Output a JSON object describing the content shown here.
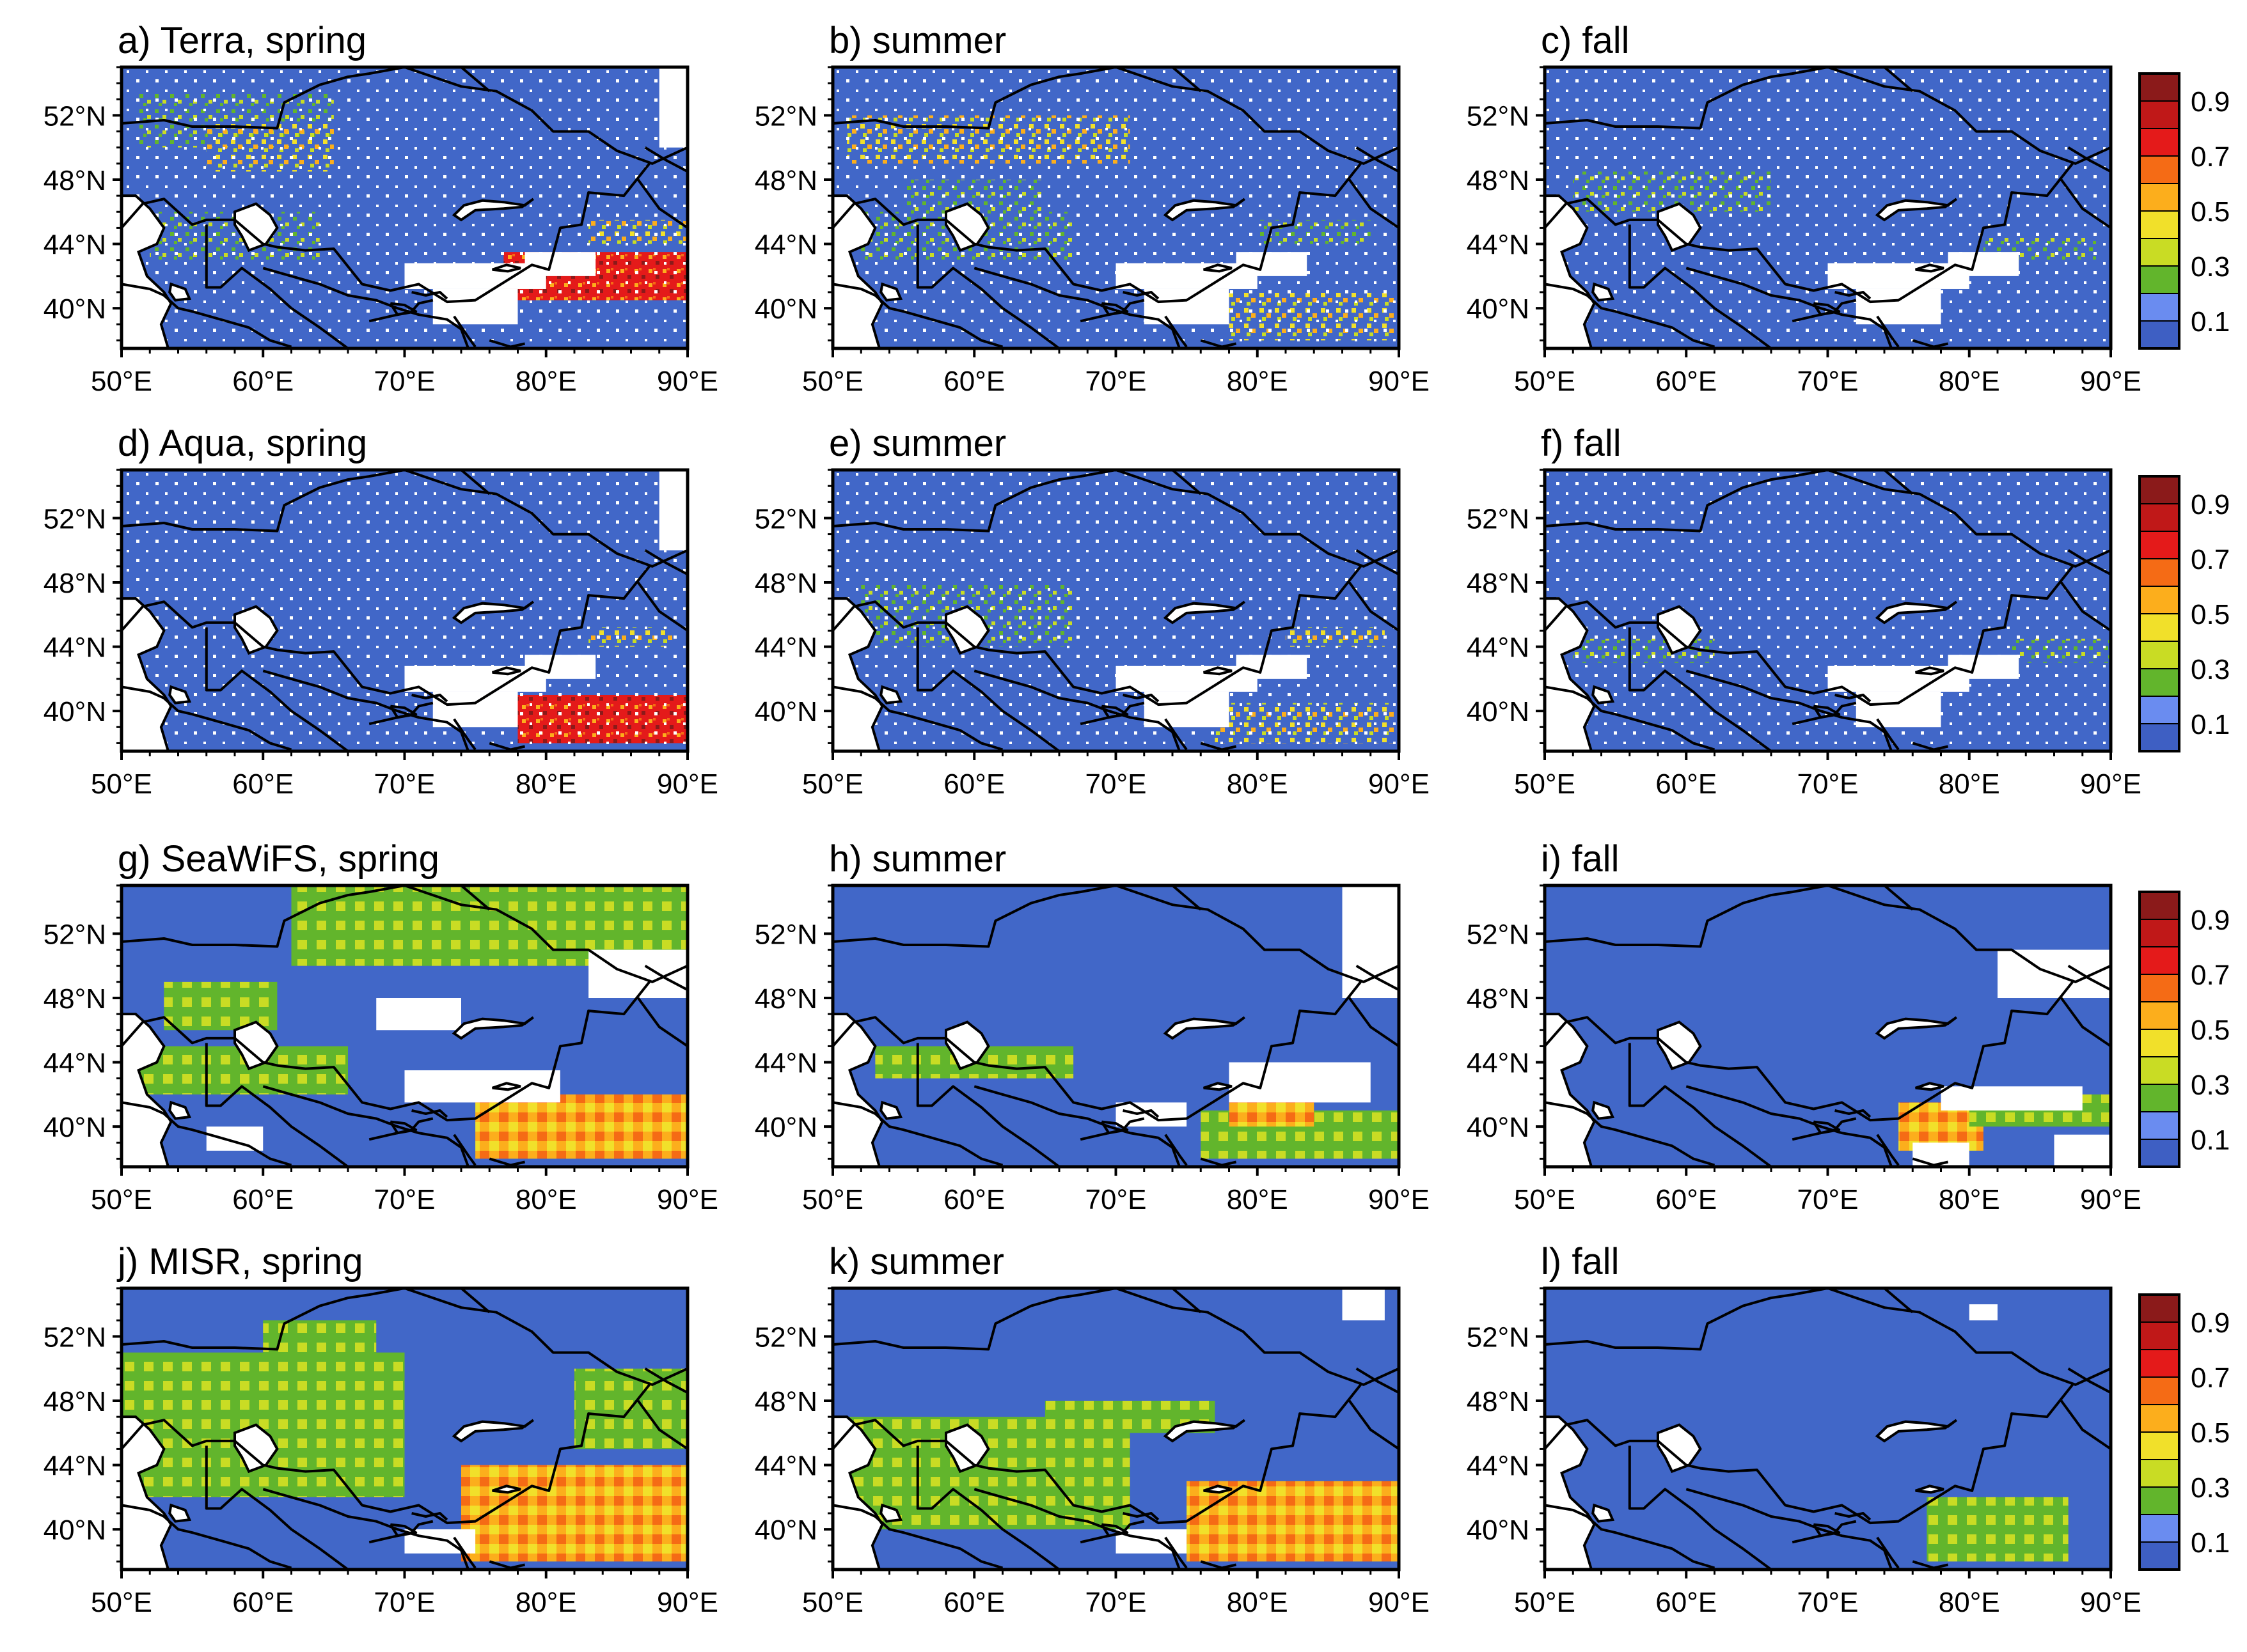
{
  "figure": {
    "panels": [
      {
        "title": "a) Terra, spring",
        "sensor": "Terra",
        "season": "spring"
      },
      {
        "title": "b) summer",
        "sensor": "Terra",
        "season": "summer"
      },
      {
        "title": "c) fall",
        "sensor": "Terra",
        "season": "fall"
      },
      {
        "title": "d) Aqua, spring",
        "sensor": "Aqua",
        "season": "spring"
      },
      {
        "title": "e) summer",
        "sensor": "Aqua",
        "season": "summer"
      },
      {
        "title": "f) fall",
        "sensor": "Aqua",
        "season": "fall"
      },
      {
        "title": "g) SeaWiFS, spring",
        "sensor": "SeaWiFS",
        "season": "spring"
      },
      {
        "title": "h) summer",
        "sensor": "SeaWiFS",
        "season": "summer"
      },
      {
        "title": "i) fall",
        "sensor": "SeaWiFS",
        "season": "fall"
      },
      {
        "title": "j) MISR, spring",
        "sensor": "MISR",
        "season": "spring"
      },
      {
        "title": "k) summer",
        "sensor": "MISR",
        "season": "summer"
      },
      {
        "title": "l) fall",
        "sensor": "MISR",
        "season": "fall"
      }
    ],
    "x_ticks": [
      "50°E",
      "60°E",
      "70°E",
      "80°E",
      "90°E"
    ],
    "y_ticks": [
      "52°N",
      "48°N",
      "44°N",
      "40°N"
    ],
    "lon_range": [
      50,
      90
    ],
    "lat_range": [
      37.5,
      55
    ]
  },
  "colorbar": {
    "labels": [
      "0.9",
      "0.7",
      "0.5",
      "0.3",
      "0.1"
    ],
    "colors": [
      "#3e5fc3",
      "#6a8cf0",
      "#62b52c",
      "#c9dc24",
      "#f1e02a",
      "#fcae1c",
      "#f56b15",
      "#e41a1a",
      "#c01818",
      "#8b1a1a"
    ]
  },
  "colors": {
    "background_ocean_nodata": "#ffffff",
    "base_field": "#4167c8",
    "borders": "#000000"
  }
}
